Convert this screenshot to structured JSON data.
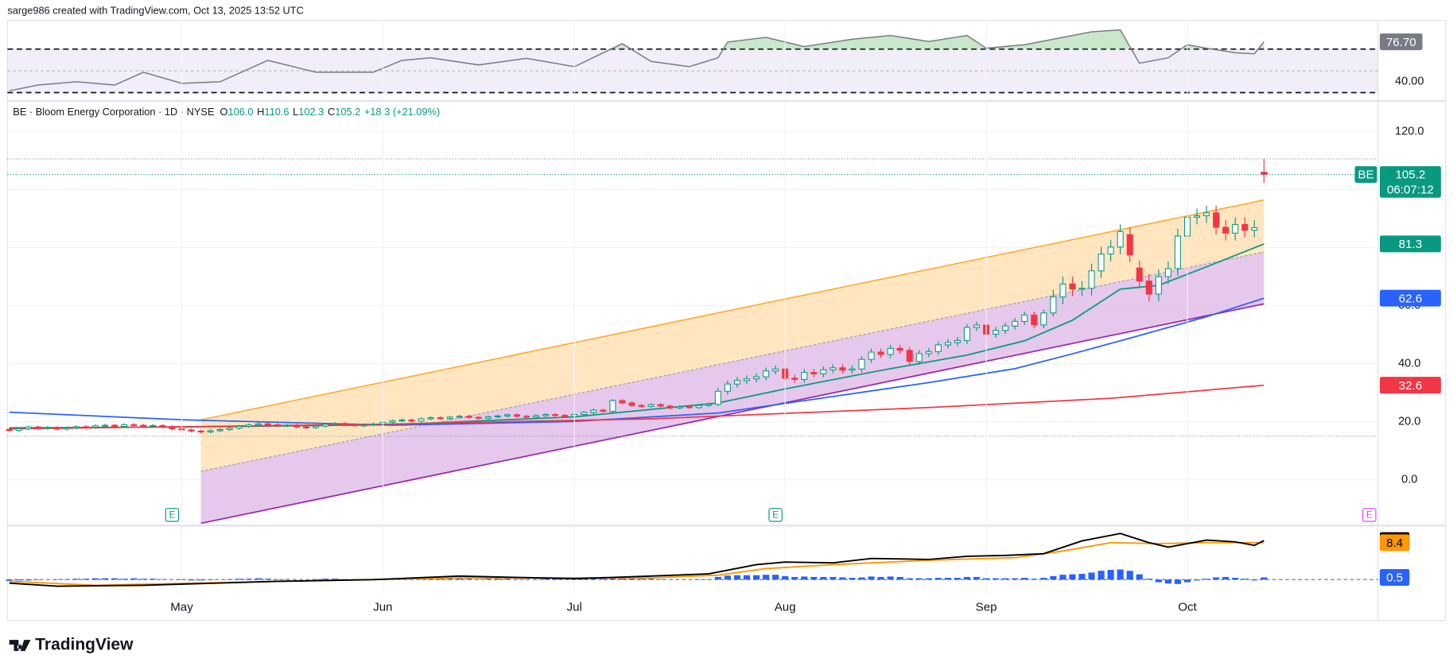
{
  "header": "sarge986 created with TradingView.com, Oct 13, 2025 13:52 UTC",
  "logo": "TradingView",
  "chart_data": [
    {
      "type": "line",
      "color": "#787b86",
      "xlim": [
        -0.2,
        142.9
      ],
      "ylim": [
        23.2,
        96.4
      ],
      "yticks": [
        {
          "value": 40,
          "label": "40.00"
        }
      ],
      "levels": [
        30,
        50,
        70
      ],
      "band_color": "#7e57c2",
      "overbought_color": "#4caf50",
      "tag_color": "#787b86",
      "current_label": "76.70",
      "x": [
        0,
        3,
        7,
        11,
        14,
        18,
        22,
        27,
        32,
        38,
        41,
        44,
        49,
        54,
        59,
        64,
        67,
        71,
        74,
        75,
        79,
        83,
        88,
        92,
        96,
        100,
        102,
        106,
        109,
        113,
        116,
        118,
        121,
        123,
        125,
        128,
        130,
        131
      ],
      "values": [
        31.7,
        37,
        40,
        37,
        48.7,
        38.5,
        40,
        59.6,
        48.7,
        48.7,
        59.6,
        62,
        55.5,
        61.5,
        53.8,
        75,
        58.7,
        53.8,
        62,
        76.5,
        80.8,
        72.3,
        79,
        82.5,
        77,
        82.5,
        70.9,
        74,
        79,
        85.9,
        87.6,
        57,
        62,
        74,
        70.9,
        66.6,
        65.7,
        76.7
      ]
    },
    {
      "type": "candlestick",
      "symbol_legend": "BE · Bloom Energy Corporation · 1D · NYSE",
      "ohlc_legend": [
        {
          "key": "O",
          "value": "106.0"
        },
        {
          "key": "H",
          "value": "110.6"
        },
        {
          "key": "L",
          "value": "102.3"
        },
        {
          "key": "C",
          "value": "105.2"
        }
      ],
      "change": "+18.3 (+21.09%)",
      "symbol_tag": "BE",
      "countdown": "06:07:12",
      "up_color": "#089981",
      "down_color": "#f23645",
      "grid": true,
      "xlim": [
        -0.2,
        142.9
      ],
      "ylim": [
        -15.6,
        129.6
      ],
      "yticks": [
        {
          "value": 0,
          "label": "0.0"
        },
        {
          "value": 20,
          "label": "20.0"
        },
        {
          "value": 40,
          "label": "40.0"
        },
        {
          "value": 60,
          "label": "60.0"
        },
        {
          "value": 80,
          "label": "80.0"
        },
        {
          "value": 100,
          "label": "100.0"
        },
        {
          "value": 120,
          "label": "120.0"
        }
      ],
      "levels": [
        15,
        110.6
      ],
      "open": [
        17.4,
        17.0,
        17.6,
        18.2,
        17.8,
        18.0,
        17.5,
        17.9,
        18.3,
        18.1,
        18.6,
        18.8,
        18.4,
        19.0,
        18.8,
        18.5,
        18.7,
        18.3,
        17.6,
        17.2,
        16.8,
        16.5,
        16.9,
        17.3,
        17.8,
        18.4,
        18.9,
        19.3,
        19.0,
        18.6,
        18.8,
        18.2,
        18.0,
        18.5,
        19.1,
        19.4,
        19.0,
        18.7,
        18.9,
        19.2,
        19.8,
        20.3,
        20.6,
        20.2,
        21.0,
        21.4,
        21.1,
        21.6,
        21.9,
        21.5,
        21.2,
        21.7,
        22.0,
        22.4,
        21.9,
        21.6,
        22.1,
        22.5,
        22.2,
        21.8,
        22.5,
        23.2,
        24.0,
        23.6,
        27.3,
        26.5,
        25.6,
        25.3,
        25.9,
        25.4,
        24.8,
        25.2,
        24.9,
        25.6,
        26.0,
        30.5,
        33.0,
        34.2,
        34.8,
        35.5,
        37.5,
        38.2,
        35.0,
        34.6,
        37.0,
        36.5,
        37.9,
        38.6,
        37.8,
        38.2,
        41.5,
        44.0,
        43.2,
        45.3,
        44.6,
        40.8,
        43.5,
        44.2,
        46.5,
        47.3,
        48.0,
        52.5,
        53.3,
        50.2,
        51.5,
        53.0,
        54.6,
        56.8,
        53.4,
        57.5,
        63.0,
        67.5,
        65.8,
        66.0,
        72.0,
        77.8,
        80.2,
        84.5,
        73.0,
        68.5,
        64.0,
        70.0,
        72.8,
        84.0,
        90.5,
        91.0,
        92.0,
        87.0,
        85.0,
        88.0,
        86.0,
        106.0
      ],
      "high": [
        17.9,
        18.1,
        18.7,
        18.7,
        18.5,
        18.5,
        18.4,
        18.8,
        18.8,
        19.1,
        19.3,
        19.3,
        19.5,
        19.5,
        19.3,
        19.2,
        19.2,
        18.8,
        18.1,
        17.7,
        17.3,
        17.4,
        17.8,
        18.3,
        18.9,
        19.4,
        19.8,
        19.8,
        19.5,
        19.3,
        19.3,
        18.7,
        19.0,
        19.6,
        19.9,
        19.9,
        19.5,
        19.4,
        19.7,
        20.3,
        20.8,
        21.1,
        21.1,
        21.5,
        21.9,
        21.9,
        22.1,
        22.4,
        22.4,
        22.0,
        22.2,
        22.5,
        22.9,
        22.9,
        22.4,
        22.6,
        23.0,
        23.0,
        22.7,
        23.0,
        23.7,
        24.5,
        24.5,
        27.8,
        27.8,
        27.0,
        26.1,
        26.4,
        26.4,
        25.9,
        25.7,
        25.7,
        26.1,
        26.5,
        31.7,
        34.2,
        35.4,
        36.0,
        36.7,
        38.7,
        39.4,
        39.4,
        36.2,
        38.2,
        38.2,
        39.1,
        39.8,
        39.8,
        39.4,
        42.7,
        45.2,
        45.2,
        46.5,
        46.5,
        45.8,
        44.7,
        45.4,
        47.7,
        48.5,
        49.2,
        53.7,
        54.5,
        54.5,
        52.7,
        54.2,
        55.8,
        58.0,
        58.0,
        58.7,
        65.5,
        70.0,
        70.0,
        68.5,
        74.5,
        80.3,
        82.7,
        88.0,
        87.0,
        75.5,
        71.0,
        72.5,
        75.3,
        86.5,
        93.0,
        93.5,
        94.5,
        94.5,
        89.5,
        90.5,
        90.5,
        89.4,
        110.6
      ],
      "low": [
        16.5,
        16.5,
        17.1,
        17.3,
        17.3,
        17.0,
        17.0,
        17.4,
        17.6,
        17.6,
        18.1,
        17.9,
        17.9,
        18.3,
        18.0,
        18.0,
        17.8,
        17.1,
        16.7,
        16.3,
        16.0,
        16.0,
        16.4,
        16.8,
        17.3,
        17.9,
        18.4,
        18.5,
        18.1,
        18.1,
        17.7,
        17.5,
        17.5,
        18.0,
        18.6,
        18.5,
        18.2,
        18.2,
        18.4,
        18.7,
        19.3,
        19.8,
        19.7,
        19.7,
        20.5,
        20.6,
        20.6,
        21.1,
        21.0,
        20.7,
        20.7,
        21.2,
        21.5,
        21.4,
        21.1,
        21.1,
        21.6,
        21.7,
        21.3,
        21.3,
        22.0,
        22.7,
        23.1,
        23.1,
        26.0,
        25.1,
        24.8,
        24.8,
        24.9,
        24.3,
        24.3,
        24.4,
        24.4,
        25.1,
        25.5,
        29.3,
        31.8,
        33.0,
        33.6,
        34.3,
        36.3,
        33.8,
        33.4,
        33.4,
        35.3,
        35.3,
        36.7,
        36.6,
        36.6,
        37.0,
        40.3,
        42.0,
        42.0,
        43.4,
        39.6,
        39.6,
        42.3,
        43.0,
        45.3,
        46.1,
        46.8,
        51.3,
        49.0,
        49.0,
        50.3,
        51.8,
        53.4,
        52.2,
        52.2,
        56.3,
        60.5,
        63.3,
        63.3,
        63.5,
        69.5,
        75.3,
        77.7,
        75.0,
        66.0,
        61.5,
        61.5,
        67.5,
        70.3,
        81.5,
        88.0,
        88.5,
        84.5,
        82.5,
        82.5,
        83.5,
        83.5,
        102.3
      ],
      "close": [
        17.0,
        17.6,
        18.2,
        17.8,
        18.0,
        17.5,
        17.9,
        18.3,
        18.1,
        18.6,
        18.8,
        18.4,
        19.0,
        18.8,
        18.5,
        18.7,
        18.3,
        17.6,
        17.2,
        16.8,
        16.5,
        16.9,
        17.3,
        17.8,
        18.4,
        18.9,
        19.3,
        19.0,
        18.6,
        18.8,
        18.2,
        18.0,
        18.5,
        19.1,
        19.4,
        19.0,
        18.7,
        18.9,
        19.2,
        19.8,
        20.3,
        20.6,
        20.2,
        21.0,
        21.4,
        21.1,
        21.6,
        21.9,
        21.5,
        21.2,
        21.7,
        22.0,
        22.4,
        21.9,
        21.6,
        22.1,
        22.5,
        22.2,
        21.8,
        22.5,
        23.2,
        24.0,
        23.6,
        27.3,
        26.5,
        25.6,
        25.3,
        25.9,
        25.4,
        24.8,
        25.2,
        24.9,
        25.6,
        26.0,
        30.5,
        33.0,
        34.2,
        34.8,
        35.5,
        37.5,
        38.2,
        35.0,
        34.6,
        37.0,
        36.5,
        37.9,
        38.6,
        37.8,
        38.2,
        41.5,
        44.0,
        43.2,
        45.3,
        44.6,
        40.8,
        43.5,
        44.2,
        46.5,
        47.3,
        48.0,
        52.5,
        53.3,
        50.2,
        51.5,
        53.0,
        54.6,
        56.8,
        53.4,
        57.5,
        63.0,
        67.5,
        65.8,
        66.0,
        72.0,
        77.8,
        80.2,
        85.5,
        77.5,
        68.5,
        64.0,
        70.0,
        72.8,
        84.0,
        90.5,
        91.0,
        92.0,
        87.0,
        85.0,
        88.0,
        86.0,
        86.9,
        105.2
      ],
      "overlays": [
        {
          "color": "#089981",
          "x": [
            0,
            18,
            40,
            59,
            74,
            81,
            91,
            100,
            106,
            111,
            116,
            120,
            125,
            131
          ],
          "values": [
            17.9,
            18.2,
            19,
            21.7,
            26.5,
            31.3,
            37.7,
            43,
            47.9,
            55,
            65.7,
            67,
            73.4,
            81.3
          ]
        },
        {
          "color": "#2962ff",
          "x": [
            0,
            18,
            40,
            59,
            74,
            86,
            96,
            105,
            111,
            117,
            125,
            131
          ],
          "values": [
            23.3,
            20.7,
            18.8,
            20.1,
            23,
            28.7,
            33.5,
            38.3,
            43.4,
            48.8,
            56.2,
            62.6
          ]
        },
        {
          "color": "#f23645",
          "x": [
            0,
            38,
            67,
            96,
            115,
            131
          ],
          "values": [
            17.6,
            19.1,
            21,
            24.9,
            28.1,
            32.6
          ]
        }
      ],
      "channel": {
        "x": [
          20,
          131
        ],
        "upper": [
          20.7,
          96.4
        ],
        "middle": [
          2.9,
          78.5
        ],
        "lower": [
          -15,
          60.6
        ],
        "upper_color": "#ffa726",
        "lower_color": "#9c27b0",
        "upper_fill": "#ffe0b2",
        "lower_fill": "#e1bee7"
      },
      "earnings": [
        {
          "x": 17,
          "label": "E",
          "color": "#089981"
        },
        {
          "x": 80,
          "label": "E",
          "color": "#089981"
        },
        {
          "x": 142,
          "label": "E",
          "color": "#e040fb"
        }
      ]
    },
    {
      "type": "macd",
      "xlim": [
        -0.2,
        142.9
      ],
      "ylim": [
        -3.4,
        12.2
      ],
      "levels": [
        0
      ],
      "histogram_color": "#2962ff",
      "xticks": [
        {
          "value": 18,
          "label": "May"
        },
        {
          "value": 39,
          "label": "Jun"
        },
        {
          "value": 59,
          "label": "Jul"
        },
        {
          "value": 81,
          "label": "Aug"
        },
        {
          "value": 102,
          "label": "Sep"
        },
        {
          "value": 123,
          "label": "Oct"
        }
      ],
      "histogram": [
        -0.3,
        -0.2,
        -0.2,
        -0.1,
        0,
        0.1,
        0.1,
        0.2,
        0.2,
        0.3,
        0.3,
        0.3,
        0.2,
        0.3,
        0.2,
        0.2,
        0.1,
        0,
        -0.1,
        -0.2,
        -0.2,
        -0.1,
        0,
        0.1,
        0.2,
        0.2,
        0.3,
        0.2,
        0.1,
        0.1,
        0,
        0,
        0.1,
        0.2,
        0.2,
        0.1,
        0.1,
        0.1,
        0.1,
        0.2,
        0.2,
        0.3,
        0.2,
        0.3,
        0.3,
        0.2,
        0.3,
        0.3,
        0.2,
        0.1,
        0.2,
        0.2,
        0.2,
        0.1,
        0.1,
        0.1,
        0.2,
        0.1,
        0,
        0.1,
        0.2,
        0.3,
        0.2,
        0.6,
        0.5,
        0.3,
        0.2,
        0.2,
        0.1,
        0,
        0,
        0,
        0.1,
        0.1,
        0.6,
        0.9,
        1,
        1,
        1,
        1.1,
        1.1,
        0.8,
        0.6,
        0.7,
        0.6,
        0.6,
        0.6,
        0.5,
        0.4,
        0.5,
        0.7,
        0.6,
        0.7,
        0.6,
        0.3,
        0.3,
        0.3,
        0.4,
        0.4,
        0.4,
        0.6,
        0.6,
        0.3,
        0.3,
        0.3,
        0.3,
        0.4,
        0.2,
        0.4,
        0.8,
        1.1,
        1.2,
        1.3,
        1.6,
        2,
        2.2,
        2.3,
        2,
        1.2,
        0.2,
        -0.6,
        -0.9,
        -1,
        -0.6,
        -0.2,
        0.2,
        0.5,
        0.6,
        0.4,
        0.2,
        -0.2,
        0.5
      ],
      "macd": {
        "color": "#000000",
        "x": [
          0,
          5,
          14,
          28,
          38,
          47,
          59,
          67,
          73,
          78,
          81,
          86,
          90,
          96,
          100,
          104,
          108,
          112,
          116,
          119,
          121,
          125,
          128,
          130,
          131
        ],
        "values": [
          -0.8,
          -1.5,
          -1.3,
          -0.4,
          0,
          0.8,
          0.2,
          0.8,
          1.3,
          3.4,
          4,
          3.8,
          4.8,
          4.6,
          5.3,
          5.5,
          5.9,
          8.8,
          10.5,
          8.4,
          7.4,
          9,
          8.6,
          7.8,
          8.9
        ]
      },
      "signal": {
        "color": "#ff9800",
        "x": [
          0,
          9,
          28,
          47,
          67,
          74,
          79,
          86,
          96,
          105,
          110,
          115,
          120,
          125,
          131
        ],
        "values": [
          -0.4,
          -1.3,
          -0.4,
          0.4,
          0.4,
          1,
          2.5,
          3.4,
          4.4,
          5,
          6.5,
          8.4,
          8.2,
          8.4,
          8.4
        ]
      }
    }
  ]
}
